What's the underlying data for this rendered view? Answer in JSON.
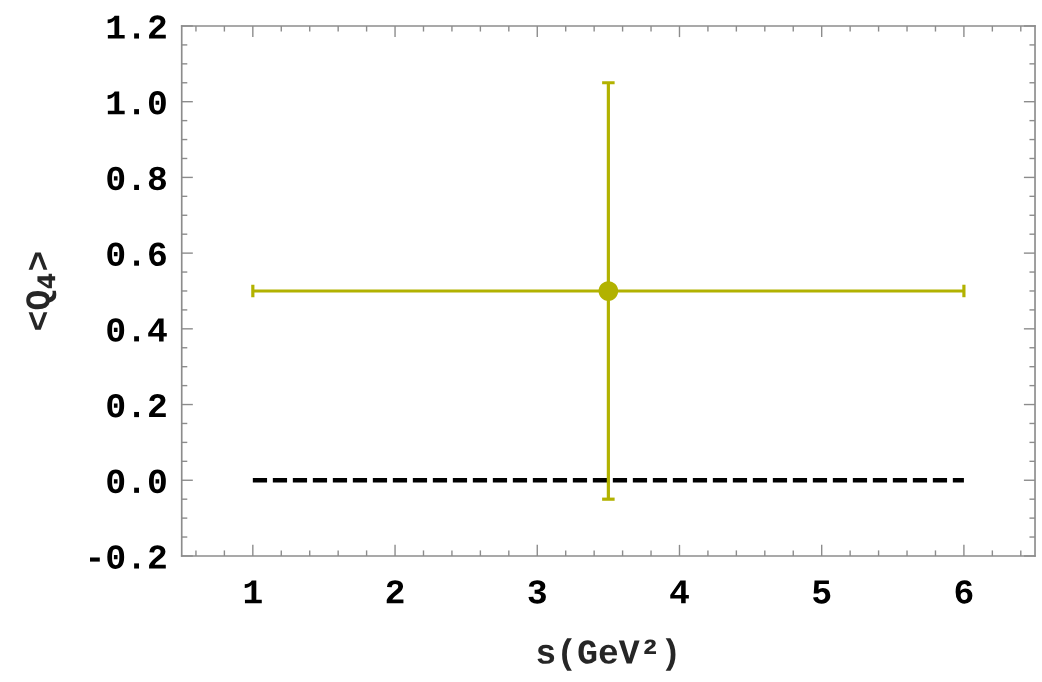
{
  "chart_data": {
    "type": "scatter",
    "xlabel": "s(GeV²)",
    "ylabel": "<Q$_{4}$>",
    "xlim": [
      0.5,
      6.5
    ],
    "ylim": [
      -0.2,
      1.2
    ],
    "xticks": [
      1,
      2,
      3,
      4,
      5,
      6
    ],
    "yticks": [
      -0.2,
      {
        "value": 0.0,
        "label": "0.0"
      },
      0.2,
      0.4,
      0.6,
      0.8,
      {
        "value": 1.0,
        "label": "1.0"
      },
      1.2
    ],
    "grid": false,
    "legend": false,
    "series": [
      {
        "type": "line",
        "x": [
          1,
          6
        ],
        "values": [
          0,
          0
        ],
        "color": "#000000",
        "line_style": "dashed",
        "marker": "none"
      },
      {
        "x": [
          3.5
        ],
        "values": [
          0.5
        ],
        "errors": [
          0.55
        ],
        "xerrors": [
          2.5
        ],
        "color": "#b2b200",
        "marker": "circle"
      }
    ]
  }
}
